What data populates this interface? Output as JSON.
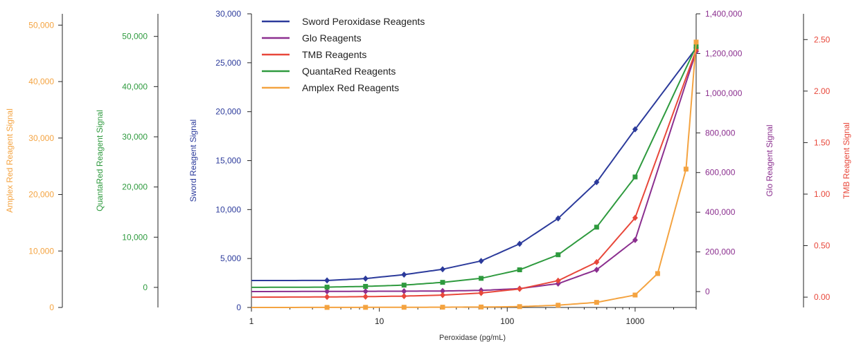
{
  "chart_data": {
    "type": "line",
    "xscale": "log",
    "xlim": [
      1,
      3000
    ],
    "xticks": [
      {
        "value": 1,
        "label": "1"
      },
      {
        "value": 10,
        "label": "10"
      },
      {
        "value": 100,
        "label": "100"
      },
      {
        "value": 1000,
        "label": "1000"
      }
    ],
    "xlabel": "Peroxidase (pg/mL)",
    "grid": false,
    "legend_position": "top-left",
    "axes": [
      {
        "id": "amplex",
        "title": "Amplex Red Reagent Signal",
        "color": "#f4a340",
        "side": "left",
        "ylim": [
          0,
          52000
        ],
        "ticks": [
          0,
          10000,
          20000,
          30000,
          40000,
          50000
        ],
        "tick_labels": [
          "0",
          "10,000",
          "20,000",
          "30,000",
          "40,000",
          "50,000"
        ]
      },
      {
        "id": "quanta",
        "title": "QuantaRed Reagent Signal",
        "color": "#2e9a3e",
        "side": "left",
        "ylim": [
          -4000,
          54500
        ],
        "ticks": [
          0,
          10000,
          20000,
          30000,
          40000,
          50000
        ],
        "tick_labels": [
          "0",
          "10,000",
          "20,000",
          "30,000",
          "40,000",
          "50,000"
        ]
      },
      {
        "id": "sword",
        "title": "Sword Reagent Signal",
        "color": "#2b3a9b",
        "side": "left",
        "ylim": [
          0,
          30000
        ],
        "ticks": [
          0,
          5000,
          10000,
          15000,
          20000,
          25000,
          30000
        ],
        "tick_labels": [
          "0",
          "5,000",
          "10,000",
          "15,000",
          "20,000",
          "25,000",
          "30,000"
        ]
      },
      {
        "id": "glo",
        "title": "Glo Reagent Signal",
        "color": "#8b2f8f",
        "side": "right",
        "ylim": [
          -80000,
          1400000
        ],
        "ticks": [
          0,
          200000,
          400000,
          600000,
          800000,
          1000000,
          1200000,
          1400000
        ],
        "tick_labels": [
          "0",
          "200,000",
          "400,000",
          "600,000",
          "800,000",
          "1,000,000",
          "1,200,000",
          "1,400,000"
        ]
      },
      {
        "id": "tmb",
        "title": "TMB Reagent Signal",
        "color": "#e8473a",
        "side": "right",
        "ylim": [
          -0.1,
          2.75
        ],
        "ticks": [
          0,
          0.5,
          1,
          1.5,
          2,
          2.5
        ],
        "tick_labels": [
          "0.00",
          "0.50",
          "1.00",
          "1.50",
          "2.00",
          "2.50"
        ]
      }
    ],
    "series": [
      {
        "name": "Sword Peroxidase Reagents",
        "axis": "sword",
        "color": "#2b3a9b",
        "marker": "diamond",
        "x": [
          1,
          3.9,
          7.8,
          15.6,
          31.25,
          62.5,
          125,
          250,
          500,
          1000,
          3000
        ],
        "y": [
          2750,
          2760,
          2950,
          3350,
          3900,
          4750,
          6500,
          9100,
          12800,
          18200,
          26500
        ]
      },
      {
        "name": "Glo Reagents",
        "axis": "glo",
        "color": "#8b2f8f",
        "marker": "diamond",
        "x": [
          1,
          3.9,
          7.8,
          15.6,
          31.25,
          62.5,
          125,
          250,
          500,
          1000,
          3000
        ],
        "y": [
          0,
          1000,
          1500,
          2000,
          3000,
          6000,
          15000,
          40000,
          110000,
          260000,
          1210000
        ]
      },
      {
        "name": "TMB Reagents",
        "axis": "tmb",
        "color": "#e8473a",
        "marker": "diamond",
        "x": [
          1,
          3.9,
          7.8,
          15.6,
          31.25,
          62.5,
          125,
          250,
          500,
          1000,
          3000
        ],
        "y": [
          0.0,
          0.002,
          0.005,
          0.01,
          0.02,
          0.04,
          0.08,
          0.16,
          0.34,
          0.77,
          2.4
        ]
      },
      {
        "name": "QuantaRed Reagents",
        "axis": "quanta",
        "color": "#2e9a3e",
        "marker": "square",
        "x": [
          1,
          3.9,
          7.8,
          15.6,
          31.25,
          62.5,
          125,
          250,
          500,
          1000,
          3000
        ],
        "y": [
          0,
          50,
          200,
          450,
          1000,
          1800,
          3500,
          6500,
          12000,
          22000,
          48000
        ]
      },
      {
        "name": "Amplex Red Reagents",
        "axis": "amplex",
        "color": "#f4a340",
        "marker": "square",
        "x": [
          1,
          3.9,
          7.8,
          15.6,
          31.25,
          62.5,
          125,
          250,
          500,
          1000,
          1500,
          2500,
          3000
        ],
        "y": [
          0,
          10,
          20,
          30,
          50,
          80,
          150,
          400,
          900,
          2200,
          6000,
          24500,
          47000
        ]
      }
    ]
  }
}
